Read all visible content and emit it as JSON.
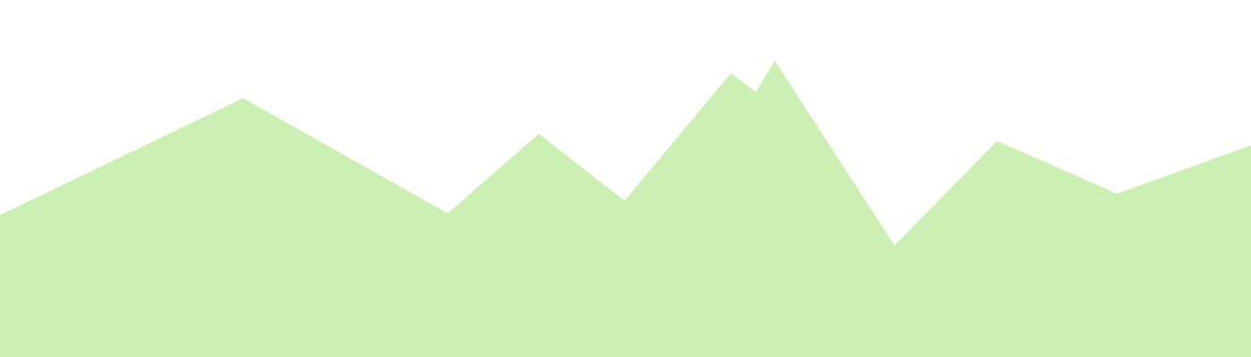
{
  "graphic": {
    "kind": "mountain-silhouette",
    "background_color": "#ffffff",
    "fill_color": "#ccefb3"
  }
}
